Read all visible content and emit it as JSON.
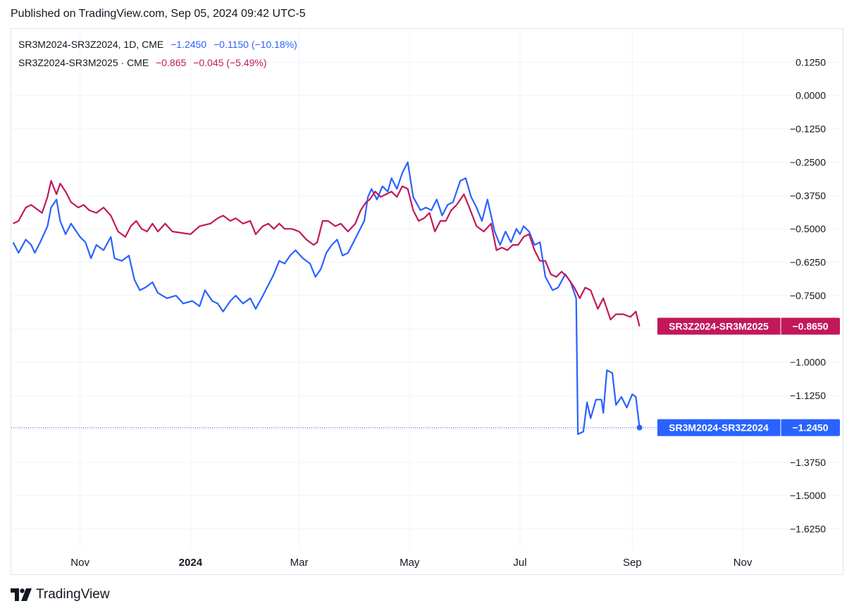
{
  "header": {
    "published": "Published on TradingView.com, Sep 05, 2024 09:42 UTC-5"
  },
  "legend": [
    {
      "symbol": "SR3M2024-SR3Z2024, 1D, CME",
      "value": "−1.2450",
      "change": "−0.1150 (−10.18%)",
      "color": "#2962ff"
    },
    {
      "symbol": "SR3Z2024-SR3M2025 · CME",
      "value": "−0.865",
      "change": "−0.045 (−5.49%)",
      "color": "#c2185b"
    }
  ],
  "footer": {
    "logo_text": "TradingView"
  },
  "colors": {
    "series_blue": "#2962ff",
    "series_red": "#c2185b",
    "grid": "#f0f3fa",
    "axis_text": "#131722"
  },
  "chart_data": {
    "type": "line",
    "y_ticks": [
      "0.1250",
      "0.0000",
      "−0.1250",
      "−0.2500",
      "−0.3750",
      "−0.5000",
      "−0.6250",
      "−0.7500",
      "−0.8750",
      "−1.0000",
      "−1.1250",
      "−1.2500",
      "−1.3750",
      "−1.5000",
      "−1.6250"
    ],
    "y_tick_values": [
      0.125,
      0,
      -0.125,
      -0.25,
      -0.375,
      -0.5,
      -0.625,
      -0.75,
      -0.875,
      -1,
      -1.125,
      -1.25,
      -1.375,
      -1.5,
      -1.625
    ],
    "ylim": [
      -1.7,
      0.25
    ],
    "x_ticks": [
      {
        "label": "Nov",
        "date": "2023-11-01",
        "bold": false
      },
      {
        "label": "2024",
        "date": "2024-01-01",
        "bold": true
      },
      {
        "label": "Mar",
        "date": "2024-03-01",
        "bold": false
      },
      {
        "label": "May",
        "date": "2024-05-01",
        "bold": false
      },
      {
        "label": "Jul",
        "date": "2024-07-01",
        "bold": false
      },
      {
        "label": "Sep",
        "date": "2024-09-01",
        "bold": false
      },
      {
        "label": "Nov",
        "date": "2024-11-01",
        "bold": false
      }
    ],
    "xlim": [
      "2023-09-24",
      "2024-11-22"
    ],
    "grid": true,
    "series": [
      {
        "name": "SR3M2024-SR3Z2024",
        "color": "#2962ff",
        "last_label": "SR3M2024-SR3Z2024",
        "last_value": "−1.2450",
        "points": [
          [
            "2023-09-25",
            -0.55
          ],
          [
            "2023-09-28",
            -0.59
          ],
          [
            "2023-10-02",
            -0.54
          ],
          [
            "2023-10-05",
            -0.56
          ],
          [
            "2023-10-07",
            -0.59
          ],
          [
            "2023-10-10",
            -0.55
          ],
          [
            "2023-10-14",
            -0.49
          ],
          [
            "2023-10-16",
            -0.42
          ],
          [
            "2023-10-19",
            -0.39
          ],
          [
            "2023-10-21",
            -0.47
          ],
          [
            "2023-10-24",
            -0.52
          ],
          [
            "2023-10-27",
            -0.48
          ],
          [
            "2023-11-01",
            -0.53
          ],
          [
            "2023-11-04",
            -0.55
          ],
          [
            "2023-11-07",
            -0.61
          ],
          [
            "2023-11-10",
            -0.56
          ],
          [
            "2023-11-14",
            -0.58
          ],
          [
            "2023-11-18",
            -0.53
          ],
          [
            "2023-11-20",
            -0.61
          ],
          [
            "2023-11-24",
            -0.62
          ],
          [
            "2023-11-28",
            -0.6
          ],
          [
            "2023-12-01",
            -0.69
          ],
          [
            "2023-12-04",
            -0.73
          ],
          [
            "2023-12-07",
            -0.72
          ],
          [
            "2023-12-11",
            -0.7
          ],
          [
            "2023-12-14",
            -0.74
          ],
          [
            "2023-12-19",
            -0.76
          ],
          [
            "2023-12-24",
            -0.75
          ],
          [
            "2023-12-28",
            -0.78
          ],
          [
            "2024-01-02",
            -0.77
          ],
          [
            "2024-01-06",
            -0.79
          ],
          [
            "2024-01-09",
            -0.73
          ],
          [
            "2024-01-13",
            -0.77
          ],
          [
            "2024-01-16",
            -0.78
          ],
          [
            "2024-01-19",
            -0.81
          ],
          [
            "2024-01-23",
            -0.77
          ],
          [
            "2024-01-26",
            -0.75
          ],
          [
            "2024-01-30",
            -0.78
          ],
          [
            "2024-02-03",
            -0.76
          ],
          [
            "2024-02-06",
            -0.8
          ],
          [
            "2024-02-10",
            -0.75
          ],
          [
            "2024-02-13",
            -0.71
          ],
          [
            "2024-02-16",
            -0.67
          ],
          [
            "2024-02-19",
            -0.62
          ],
          [
            "2024-02-22",
            -0.63
          ],
          [
            "2024-02-25",
            -0.6
          ],
          [
            "2024-02-28",
            -0.58
          ],
          [
            "2024-03-03",
            -0.61
          ],
          [
            "2024-03-07",
            -0.63
          ],
          [
            "2024-03-10",
            -0.68
          ],
          [
            "2024-03-13",
            -0.65
          ],
          [
            "2024-03-16",
            -0.59
          ],
          [
            "2024-03-19",
            -0.56
          ],
          [
            "2024-03-22",
            -0.54
          ],
          [
            "2024-03-25",
            -0.6
          ],
          [
            "2024-03-28",
            -0.59
          ],
          [
            "2024-03-31",
            -0.55
          ],
          [
            "2024-04-03",
            -0.51
          ],
          [
            "2024-04-06",
            -0.47
          ],
          [
            "2024-04-08",
            -0.38
          ],
          [
            "2024-04-10",
            -0.35
          ],
          [
            "2024-04-13",
            -0.39
          ],
          [
            "2024-04-16",
            -0.34
          ],
          [
            "2024-04-19",
            -0.36
          ],
          [
            "2024-04-21",
            -0.31
          ],
          [
            "2024-04-24",
            -0.35
          ],
          [
            "2024-04-27",
            -0.29
          ],
          [
            "2024-04-30",
            -0.25
          ],
          [
            "2024-05-03",
            -0.38
          ],
          [
            "2024-05-07",
            -0.43
          ],
          [
            "2024-05-10",
            -0.42
          ],
          [
            "2024-05-13",
            -0.43
          ],
          [
            "2024-05-16",
            -0.39
          ],
          [
            "2024-05-19",
            -0.45
          ],
          [
            "2024-05-22",
            -0.41
          ],
          [
            "2024-05-25",
            -0.4
          ],
          [
            "2024-05-29",
            -0.32
          ],
          [
            "2024-06-01",
            -0.31
          ],
          [
            "2024-06-04",
            -0.38
          ],
          [
            "2024-06-07",
            -0.42
          ],
          [
            "2024-06-10",
            -0.47
          ],
          [
            "2024-06-13",
            -0.39
          ],
          [
            "2024-06-17",
            -0.51
          ],
          [
            "2024-06-20",
            -0.56
          ],
          [
            "2024-06-23",
            -0.51
          ],
          [
            "2024-06-26",
            -0.55
          ],
          [
            "2024-06-29",
            -0.5
          ],
          [
            "2024-07-01",
            -0.52
          ],
          [
            "2024-07-03",
            -0.49
          ],
          [
            "2024-07-06",
            -0.51
          ],
          [
            "2024-07-09",
            -0.56
          ],
          [
            "2024-07-12",
            -0.55
          ],
          [
            "2024-07-15",
            -0.68
          ],
          [
            "2024-07-19",
            -0.73
          ],
          [
            "2024-07-22",
            -0.72
          ],
          [
            "2024-07-26",
            -0.67
          ],
          [
            "2024-07-29",
            -0.7
          ],
          [
            "2024-08-01",
            -0.76
          ],
          [
            "2024-08-02",
            -1.27
          ],
          [
            "2024-08-05",
            -1.26
          ],
          [
            "2024-08-07",
            -1.15
          ],
          [
            "2024-08-09",
            -1.21
          ],
          [
            "2024-08-12",
            -1.14
          ],
          [
            "2024-08-15",
            -1.14
          ],
          [
            "2024-08-16",
            -1.19
          ],
          [
            "2024-08-18",
            -1.03
          ],
          [
            "2024-08-21",
            -1.04
          ],
          [
            "2024-08-23",
            -1.16
          ],
          [
            "2024-08-26",
            -1.13
          ],
          [
            "2024-08-29",
            -1.17
          ],
          [
            "2024-09-01",
            -1.12
          ],
          [
            "2024-09-03",
            -1.13
          ],
          [
            "2024-09-05",
            -1.245
          ]
        ]
      },
      {
        "name": "SR3Z2024-SR3M2025",
        "color": "#c2185b",
        "last_label": "SR3Z2024-SR3M2025",
        "last_value": "−0.8650",
        "points": [
          [
            "2023-09-25",
            -0.48
          ],
          [
            "2023-09-28",
            -0.47
          ],
          [
            "2023-10-02",
            -0.42
          ],
          [
            "2023-10-05",
            -0.41
          ],
          [
            "2023-10-09",
            -0.43
          ],
          [
            "2023-10-11",
            -0.44
          ],
          [
            "2023-10-14",
            -0.38
          ],
          [
            "2023-10-16",
            -0.32
          ],
          [
            "2023-10-19",
            -0.37
          ],
          [
            "2023-10-21",
            -0.33
          ],
          [
            "2023-10-24",
            -0.36
          ],
          [
            "2023-10-27",
            -0.4
          ],
          [
            "2023-10-31",
            -0.42
          ],
          [
            "2023-11-03",
            -0.41
          ],
          [
            "2023-11-06",
            -0.43
          ],
          [
            "2023-11-10",
            -0.44
          ],
          [
            "2023-11-14",
            -0.42
          ],
          [
            "2023-11-18",
            -0.45
          ],
          [
            "2023-11-22",
            -0.51
          ],
          [
            "2023-11-26",
            -0.53
          ],
          [
            "2023-11-29",
            -0.49
          ],
          [
            "2023-12-02",
            -0.47
          ],
          [
            "2023-12-05",
            -0.5
          ],
          [
            "2023-12-08",
            -0.51
          ],
          [
            "2023-12-11",
            -0.48
          ],
          [
            "2023-12-14",
            -0.51
          ],
          [
            "2023-12-18",
            -0.48
          ],
          [
            "2023-12-22",
            -0.51
          ],
          [
            "2024-01-01",
            -0.52
          ],
          [
            "2024-01-06",
            -0.49
          ],
          [
            "2024-01-12",
            -0.48
          ],
          [
            "2024-01-16",
            -0.46
          ],
          [
            "2024-01-19",
            -0.45
          ],
          [
            "2024-01-23",
            -0.47
          ],
          [
            "2024-01-26",
            -0.46
          ],
          [
            "2024-01-30",
            -0.48
          ],
          [
            "2024-02-03",
            -0.47
          ],
          [
            "2024-02-06",
            -0.52
          ],
          [
            "2024-02-10",
            -0.49
          ],
          [
            "2024-02-13",
            -0.48
          ],
          [
            "2024-02-16",
            -0.5
          ],
          [
            "2024-02-19",
            -0.48
          ],
          [
            "2024-02-22",
            -0.5
          ],
          [
            "2024-02-26",
            -0.5
          ],
          [
            "2024-03-01",
            -0.51
          ],
          [
            "2024-03-05",
            -0.54
          ],
          [
            "2024-03-09",
            -0.56
          ],
          [
            "2024-03-11",
            -0.55
          ],
          [
            "2024-03-14",
            -0.47
          ],
          [
            "2024-03-17",
            -0.47
          ],
          [
            "2024-03-21",
            -0.49
          ],
          [
            "2024-03-24",
            -0.48
          ],
          [
            "2024-03-28",
            -0.51
          ],
          [
            "2024-04-01",
            -0.48
          ],
          [
            "2024-04-04",
            -0.43
          ],
          [
            "2024-04-07",
            -0.4
          ],
          [
            "2024-04-09",
            -0.39
          ],
          [
            "2024-04-12",
            -0.36
          ],
          [
            "2024-04-15",
            -0.38
          ],
          [
            "2024-04-18",
            -0.37
          ],
          [
            "2024-04-21",
            -0.36
          ],
          [
            "2024-04-24",
            -0.38
          ],
          [
            "2024-04-27",
            -0.34
          ],
          [
            "2024-04-30",
            -0.35
          ],
          [
            "2024-05-03",
            -0.43
          ],
          [
            "2024-05-06",
            -0.47
          ],
          [
            "2024-05-09",
            -0.46
          ],
          [
            "2024-05-12",
            -0.44
          ],
          [
            "2024-05-15",
            -0.51
          ],
          [
            "2024-05-18",
            -0.47
          ],
          [
            "2024-05-21",
            -0.47
          ],
          [
            "2024-05-24",
            -0.43
          ],
          [
            "2024-05-27",
            -0.41
          ],
          [
            "2024-05-31",
            -0.37
          ],
          [
            "2024-06-03",
            -0.42
          ],
          [
            "2024-06-07",
            -0.49
          ],
          [
            "2024-06-11",
            -0.51
          ],
          [
            "2024-06-15",
            -0.48
          ],
          [
            "2024-06-18",
            -0.58
          ],
          [
            "2024-06-21",
            -0.57
          ],
          [
            "2024-06-24",
            -0.58
          ],
          [
            "2024-06-27",
            -0.56
          ],
          [
            "2024-06-30",
            -0.56
          ],
          [
            "2024-07-03",
            -0.53
          ],
          [
            "2024-07-06",
            -0.52
          ],
          [
            "2024-07-09",
            -0.58
          ],
          [
            "2024-07-12",
            -0.62
          ],
          [
            "2024-07-15",
            -0.62
          ],
          [
            "2024-07-18",
            -0.67
          ],
          [
            "2024-07-21",
            -0.68
          ],
          [
            "2024-07-24",
            -0.66
          ],
          [
            "2024-07-27",
            -0.68
          ],
          [
            "2024-07-31",
            -0.72
          ],
          [
            "2024-08-03",
            -0.76
          ],
          [
            "2024-08-06",
            -0.72
          ],
          [
            "2024-08-09",
            -0.73
          ],
          [
            "2024-08-13",
            -0.8
          ],
          [
            "2024-08-16",
            -0.76
          ],
          [
            "2024-08-20",
            -0.84
          ],
          [
            "2024-08-23",
            -0.82
          ],
          [
            "2024-08-27",
            -0.82
          ],
          [
            "2024-08-31",
            -0.83
          ],
          [
            "2024-09-03",
            -0.81
          ],
          [
            "2024-09-05",
            -0.865
          ]
        ]
      }
    ]
  }
}
